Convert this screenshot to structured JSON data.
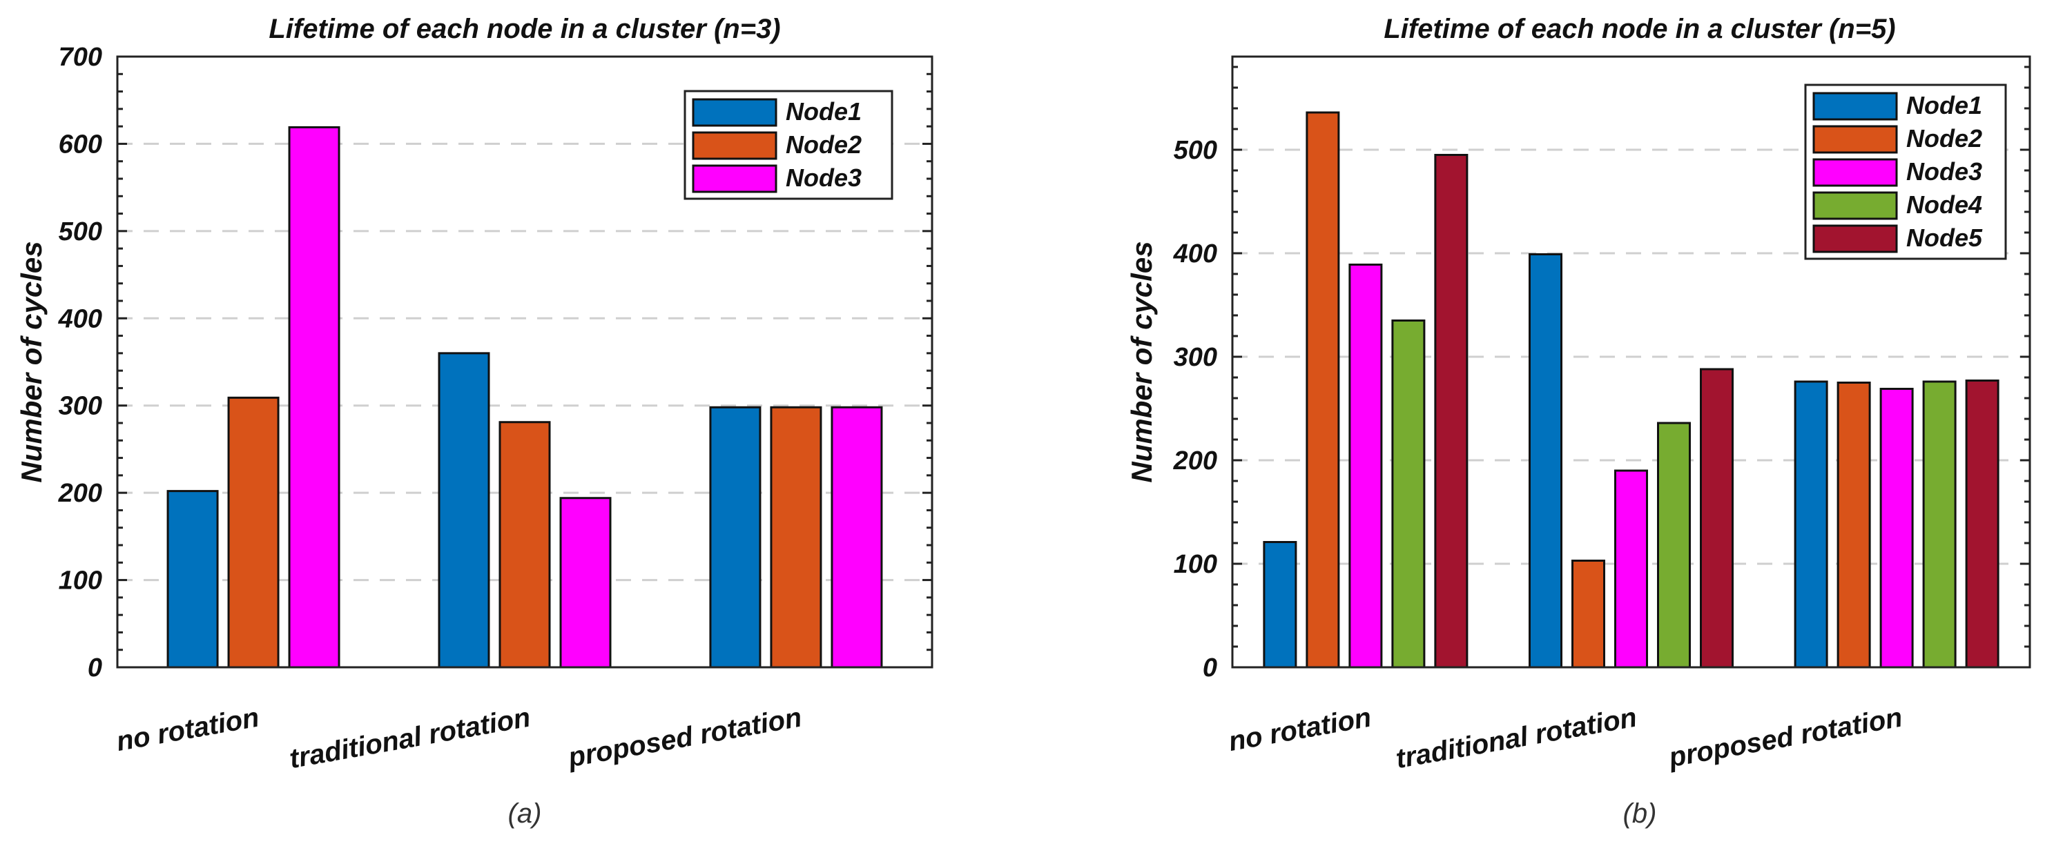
{
  "chart_data": [
    {
      "type": "bar",
      "title": "Lifetime of each node in a cluster (n=3)",
      "ylabel": "Number of cycles",
      "xlabel": "",
      "categories": [
        "no rotation",
        "traditional rotation",
        "proposed rotation"
      ],
      "ylim": [
        0,
        700
      ],
      "yticks": [
        0,
        100,
        200,
        300,
        400,
        500,
        600,
        700
      ],
      "grid": true,
      "legend_position": "top-right",
      "caption": "(a)",
      "series": [
        {
          "name": "Node1",
          "color": "#0072BD",
          "values": [
            202,
            360,
            298
          ]
        },
        {
          "name": "Node2",
          "color": "#D95319",
          "values": [
            309,
            281,
            298
          ]
        },
        {
          "name": "Node3",
          "color": "#FF00FF",
          "values": [
            619,
            194,
            298
          ]
        }
      ]
    },
    {
      "type": "bar",
      "title": "Lifetime of each node in a cluster (n=5)",
      "ylabel": "Number of cycles",
      "xlabel": "",
      "categories": [
        "no rotation",
        "traditional rotation",
        "proposed rotation"
      ],
      "ylim": [
        0,
        590
      ],
      "yticks": [
        0,
        100,
        200,
        300,
        400,
        500
      ],
      "grid": true,
      "legend_position": "top-right",
      "caption": "(b)",
      "series": [
        {
          "name": "Node1",
          "color": "#0072BD",
          "values": [
            121,
            399,
            276
          ]
        },
        {
          "name": "Node2",
          "color": "#D95319",
          "values": [
            536,
            103,
            275
          ]
        },
        {
          "name": "Node3",
          "color": "#FF00FF",
          "values": [
            389,
            190,
            269
          ]
        },
        {
          "name": "Node4",
          "color": "#77AC30",
          "values": [
            335,
            236,
            276
          ]
        },
        {
          "name": "Node5",
          "color": "#A2142F",
          "values": [
            495,
            288,
            277
          ]
        }
      ]
    }
  ]
}
